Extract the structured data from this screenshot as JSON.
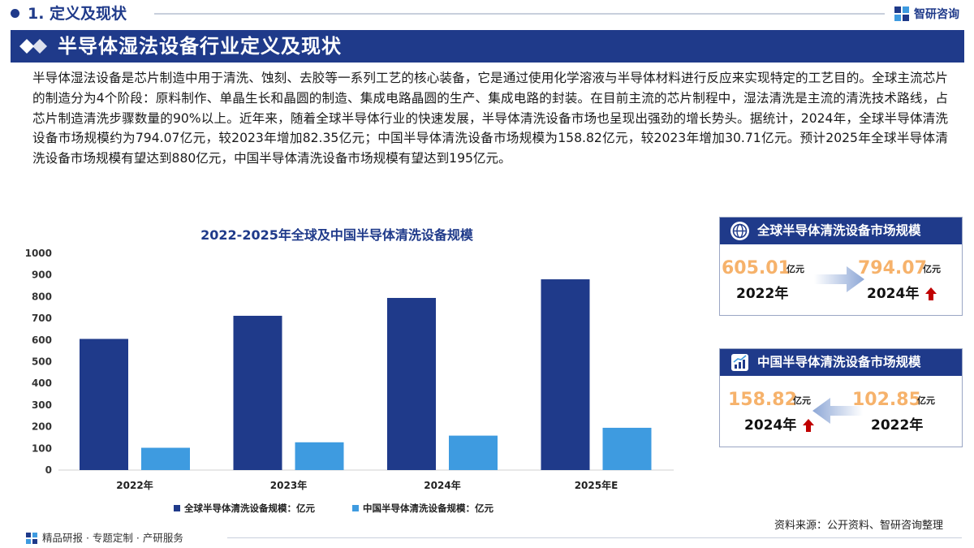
{
  "section": {
    "title": "1. 定义及现状"
  },
  "brand": {
    "name": "智研咨询"
  },
  "banner": {
    "title": "半导体湿法设备行业定义及现状"
  },
  "intro": {
    "text": "半导体湿法设备是芯片制造中用于清洗、蚀刻、去胶等一系列工艺的核心装备，它是通过使用化学溶液与半导体材料进行反应来实现特定的工艺目的。全球主流芯片的制造分为4个阶段：原料制作、单晶生长和晶圆的制造、集成电路晶圆的生产、集成电路的封装。在目前主流的芯片制程中，湿法清洗是主流的清洗技术路线，占芯片制造清洗步骤数量的90%以上。近年来，随着全球半导体行业的快速发展，半导体清洗设备市场也呈现出强劲的增长势头。据统计，2024年，全球半导体清洗设备市场规模约为794.07亿元，较2023年增加82.35亿元；中国半导体清洗设备市场规模为158.82亿元，较2023年增加30.71亿元。预计2025年全球半导体清洗设备市场规模有望达到880亿元，中国半导体清洗设备市场规模有望达到195亿元。"
  },
  "chart_data": {
    "type": "bar",
    "title": "2022-2025年全球及中国半导体清洗设备规模",
    "categories": [
      "2022年",
      "2023年",
      "2024年",
      "2025年E"
    ],
    "series": [
      {
        "name": "全球半导体清洗设备规模：亿元",
        "color": "#1f3a8a",
        "values": [
          605.01,
          711.72,
          794.07,
          880
        ]
      },
      {
        "name": "中国半导体清洗设备规模：亿元",
        "color": "#3e9be0",
        "values": [
          102.85,
          128.11,
          158.82,
          195
        ]
      }
    ],
    "ylim": [
      0,
      1000
    ],
    "yticks": [
      0,
      100,
      200,
      300,
      400,
      500,
      600,
      700,
      800,
      900,
      1000
    ],
    "legend_position": "bottom",
    "grid": false
  },
  "cards": [
    {
      "title": "全球半导体清洗设备市场规模",
      "icon": "globe-icon",
      "from": {
        "value": "605.01",
        "unit": "亿元",
        "year": "2022年"
      },
      "to": {
        "value": "794.07",
        "unit": "亿元",
        "year": "2024年"
      }
    },
    {
      "title": "中国半导体清洗设备市场规模",
      "icon": "growth-chart-icon",
      "from": {
        "value": "102.85",
        "unit": "亿元",
        "year": "2022年"
      },
      "to": {
        "value": "158.82",
        "unit": "亿元",
        "year": "2024年"
      }
    }
  ],
  "source": {
    "text": "资料来源：公开资料、智研咨询整理"
  },
  "footer": {
    "text": "精品研报 · 专题定制 · 产研服务"
  },
  "colors": {
    "navy": "#1f3a8a",
    "light_blue": "#3e9be0",
    "value_orange": "#f6b26b",
    "up_red": "#c00000"
  }
}
